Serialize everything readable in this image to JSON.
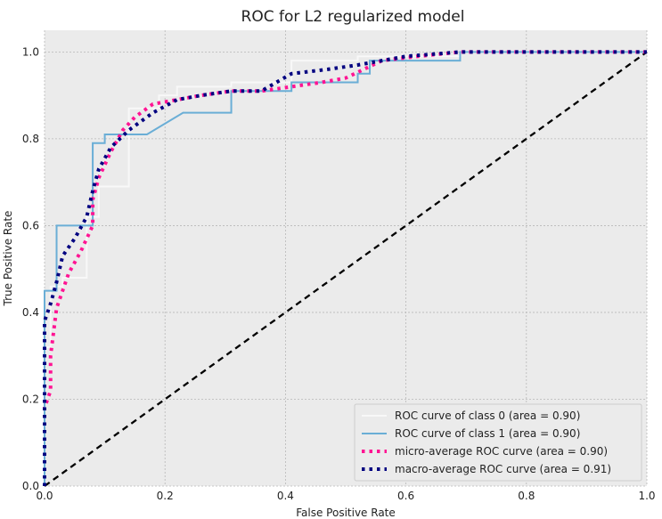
{
  "chart_data": {
    "type": "line",
    "title": "ROC for L2 regularized model",
    "xlabel": "False Positive Rate",
    "ylabel": "True Positive Rate",
    "xlim": [
      0.0,
      1.0
    ],
    "ylim": [
      0.0,
      1.05
    ],
    "xticks": [
      "0.0",
      "0.2",
      "0.4",
      "0.6",
      "0.8",
      "1.0"
    ],
    "yticks": [
      "0.0",
      "0.2",
      "0.4",
      "0.6",
      "0.8",
      "1.0"
    ],
    "grid": true,
    "legend_position": "lower-right",
    "background_color": "#ebebeb",
    "series": [
      {
        "name": "ROC curve of class 0 (area = 0.90)",
        "color": "#f8f8f8",
        "style": "solid",
        "x": [
          0.0,
          0.0,
          0.01,
          0.01,
          0.03,
          0.03,
          0.07,
          0.07,
          0.09,
          0.09,
          0.14,
          0.14,
          0.19,
          0.19,
          0.22,
          0.22,
          0.31,
          0.31,
          0.41,
          0.41,
          0.52,
          0.52,
          0.69,
          0.69,
          1.0
        ],
        "y": [
          0.0,
          0.32,
          0.32,
          0.46,
          0.46,
          0.48,
          0.48,
          0.62,
          0.62,
          0.69,
          0.69,
          0.87,
          0.87,
          0.9,
          0.9,
          0.92,
          0.92,
          0.93,
          0.93,
          0.98,
          0.98,
          0.99,
          0.99,
          1.0,
          1.0
        ]
      },
      {
        "name": "ROC curve of class 1 (area = 0.90)",
        "color": "#6aaed6",
        "style": "solid",
        "x": [
          0.0,
          0.0,
          0.02,
          0.02,
          0.08,
          0.08,
          0.1,
          0.1,
          0.17,
          0.23,
          0.31,
          0.31,
          0.41,
          0.41,
          0.52,
          0.52,
          0.54,
          0.54,
          0.69,
          0.69,
          1.0
        ],
        "y": [
          0.0,
          0.45,
          0.45,
          0.6,
          0.6,
          0.79,
          0.79,
          0.81,
          0.81,
          0.86,
          0.86,
          0.91,
          0.91,
          0.93,
          0.93,
          0.95,
          0.95,
          0.98,
          0.98,
          1.0,
          1.0
        ]
      },
      {
        "name": "micro-average ROC curve (area = 0.90)",
        "color": "#ff1493",
        "style": "dotted",
        "x": [
          0.0,
          0.0,
          0.01,
          0.01,
          0.02,
          0.04,
          0.06,
          0.08,
          0.08,
          0.09,
          0.11,
          0.13,
          0.15,
          0.18,
          0.22,
          0.26,
          0.31,
          0.36,
          0.41,
          0.46,
          0.5,
          0.53,
          0.56,
          0.62,
          0.69,
          0.8,
          1.0
        ],
        "y": [
          0.0,
          0.18,
          0.22,
          0.3,
          0.41,
          0.49,
          0.54,
          0.6,
          0.66,
          0.71,
          0.77,
          0.82,
          0.85,
          0.88,
          0.89,
          0.9,
          0.91,
          0.91,
          0.92,
          0.93,
          0.94,
          0.96,
          0.98,
          0.99,
          1.0,
          1.0,
          1.0
        ]
      },
      {
        "name": "macro-average ROC curve (area = 0.91)",
        "color": "#000080",
        "style": "dotted",
        "x": [
          0.0,
          0.0,
          0.01,
          0.02,
          0.03,
          0.05,
          0.07,
          0.08,
          0.09,
          0.11,
          0.14,
          0.18,
          0.22,
          0.26,
          0.31,
          0.36,
          0.41,
          0.47,
          0.52,
          0.56,
          0.6,
          0.69,
          0.8,
          1.0
        ],
        "y": [
          0.0,
          0.38,
          0.42,
          0.47,
          0.53,
          0.57,
          0.62,
          0.68,
          0.73,
          0.78,
          0.82,
          0.86,
          0.89,
          0.9,
          0.91,
          0.91,
          0.95,
          0.96,
          0.97,
          0.98,
          0.99,
          1.0,
          1.0,
          1.0
        ]
      },
      {
        "name": "",
        "color": "#000000",
        "style": "dashed",
        "x": [
          0.0,
          1.0
        ],
        "y": [
          0.0,
          1.0
        ]
      }
    ]
  }
}
